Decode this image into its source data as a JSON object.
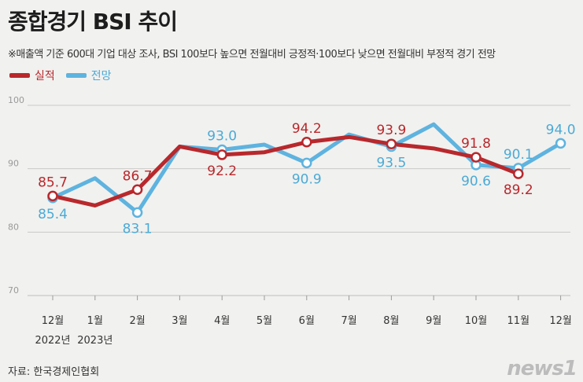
{
  "header": {
    "title": "종합경기 BSI 추이",
    "subtitle": "※매출액 기준 600대 기업 대상 조사, BSI 100보다 높으면 전월대비 긍정적·100보다 낮으면 전월대비 부정적 경기 전망"
  },
  "legend": {
    "actual_label": "실적",
    "forecast_label": "전망"
  },
  "footer": {
    "source": "자료: 한국경제인협회",
    "logo": "news1"
  },
  "colors": {
    "actual": "#b8282c",
    "forecast": "#5eb3df"
  },
  "chart_data": {
    "type": "line",
    "categories": [
      "12월",
      "1월",
      "2월",
      "3월",
      "4월",
      "5월",
      "6월",
      "7월",
      "8월",
      "9월",
      "10월",
      "11월",
      "12월"
    ],
    "category_years": [
      "2022년",
      "2023년",
      "",
      "",
      "",
      "",
      "",
      "",
      "",
      "",
      "",
      "",
      ""
    ],
    "series": [
      {
        "name": "실적",
        "values": [
          85.7,
          84.2,
          86.7,
          93.5,
          92.2,
          92.6,
          94.2,
          95.0,
          93.9,
          93.2,
          91.8,
          89.2,
          null
        ],
        "labels": [
          "85.7",
          "",
          "86.7",
          "",
          "92.2",
          "",
          "94.2",
          "",
          "93.9",
          "",
          "91.8",
          "89.2",
          ""
        ]
      },
      {
        "name": "전망",
        "values": [
          85.4,
          88.5,
          83.1,
          93.5,
          93.0,
          93.8,
          90.9,
          95.4,
          93.5,
          97.0,
          90.6,
          90.1,
          94.0
        ],
        "labels": [
          "85.4",
          "",
          "83.1",
          "",
          "93.0",
          "",
          "90.9",
          "",
          "93.5",
          "",
          "90.6",
          "90.1",
          "94.0"
        ]
      }
    ],
    "yticks": [
      70,
      80,
      90,
      100
    ],
    "ylim": [
      70,
      100
    ],
    "grid": true
  }
}
